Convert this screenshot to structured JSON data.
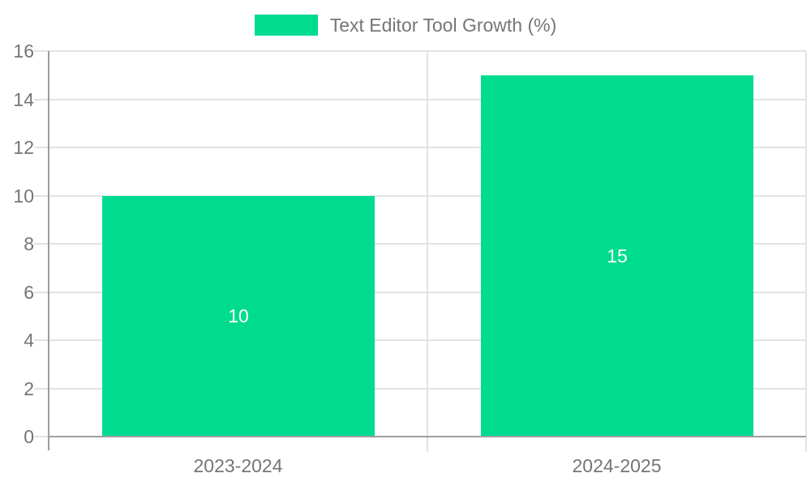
{
  "chart_data": {
    "type": "bar",
    "title": "Text Editor Tool Growth (%)",
    "categories": [
      "2023-2024",
      "2024-2025"
    ],
    "values": [
      10,
      15
    ],
    "bar_labels": [
      "10",
      "15"
    ],
    "xlabel": "",
    "ylabel": "",
    "ylim": [
      0,
      16
    ],
    "ytick_step": 2,
    "ytick_labels": [
      "0",
      "2",
      "4",
      "6",
      "8",
      "10",
      "12",
      "14",
      "16"
    ],
    "grid": true,
    "legend_position": "top-center",
    "colors": {
      "bar": "#00DC8F",
      "grid": "#e3e3e3",
      "axis": "#9e9e9e",
      "text": "#757575",
      "bar_label": "#ffffff",
      "background": "#ffffff"
    }
  }
}
